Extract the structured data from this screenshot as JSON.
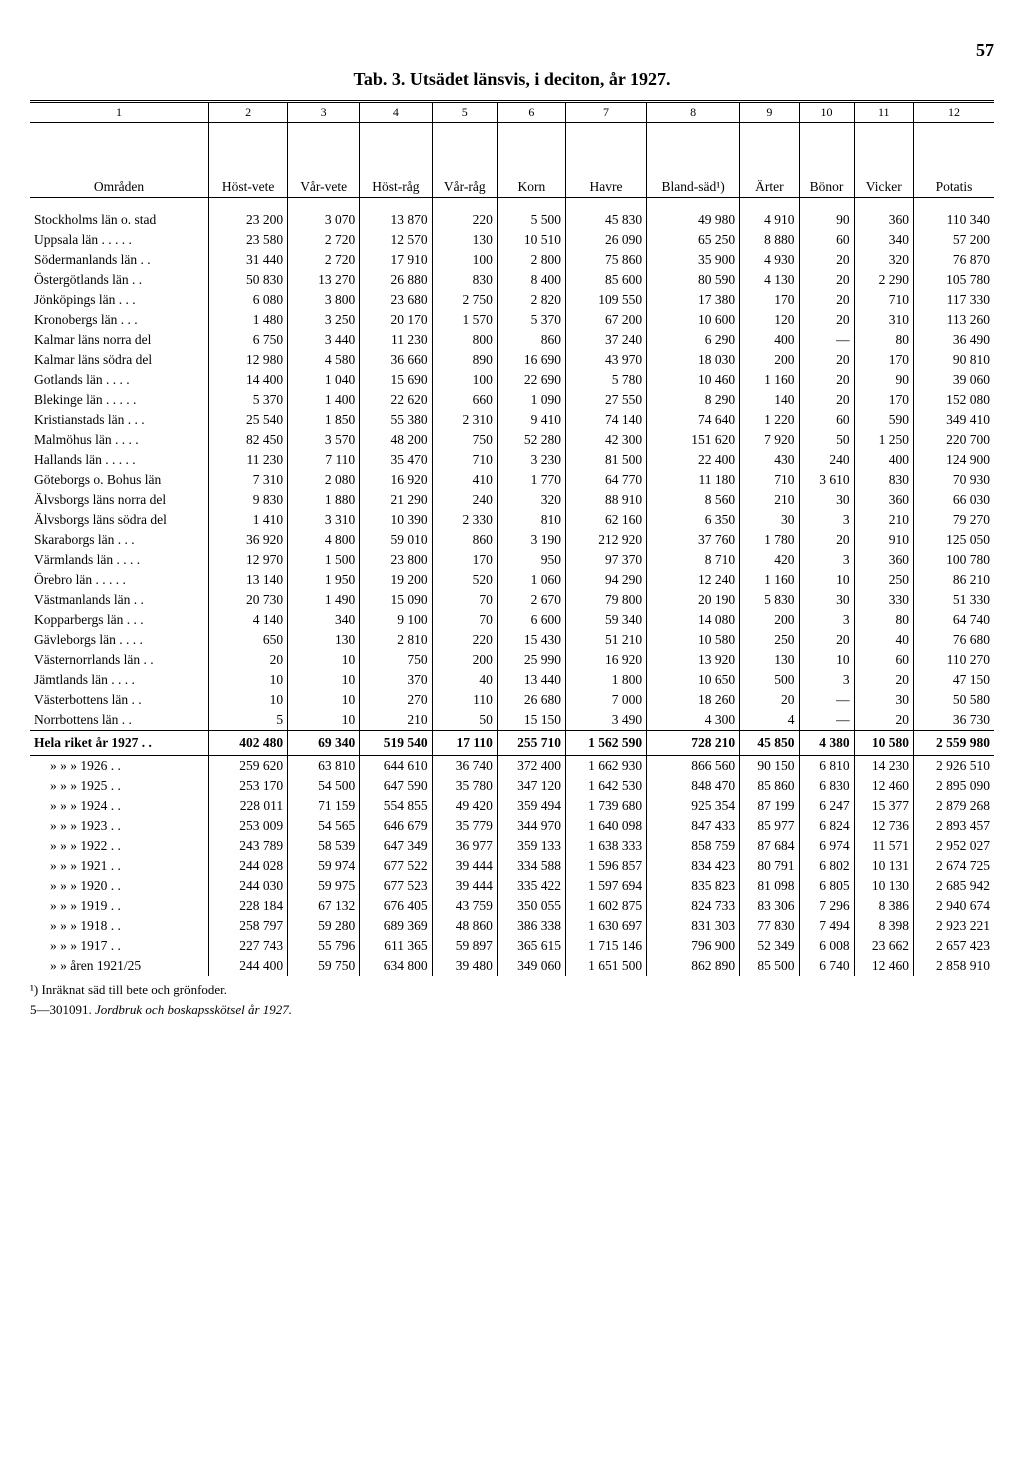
{
  "page_number": "57",
  "title": "Tab. 3.  Utsädet länsvis, i deciton, år 1927.",
  "colnums": [
    "1",
    "2",
    "3",
    "4",
    "5",
    "6",
    "7",
    "8",
    "9",
    "10",
    "11",
    "12"
  ],
  "headers": [
    "Områden",
    "Höst-vete",
    "Vår-vete",
    "Höst-råg",
    "Vår-råg",
    "Korn",
    "Havre",
    "Bland-säd¹)",
    "Ärter",
    "Bönor",
    "Vicker",
    "Potatis"
  ],
  "rows": [
    [
      "Stockholms län o. stad",
      "23 200",
      "3 070",
      "13 870",
      "220",
      "5 500",
      "45 830",
      "49 980",
      "4 910",
      "90",
      "360",
      "110 340"
    ],
    [
      "Uppsala län . . . . .",
      "23 580",
      "2 720",
      "12 570",
      "130",
      "10 510",
      "26 090",
      "65 250",
      "8 880",
      "60",
      "340",
      "57 200"
    ],
    [
      "Södermanlands län . .",
      "31 440",
      "2 720",
      "17 910",
      "100",
      "2 800",
      "75 860",
      "35 900",
      "4 930",
      "20",
      "320",
      "76 870"
    ],
    [
      "Östergötlands län  . .",
      "50 830",
      "13 270",
      "26 880",
      "830",
      "8 400",
      "85 600",
      "80 590",
      "4 130",
      "20",
      "2 290",
      "105 780"
    ],
    [
      "Jönköpings län  . . .",
      "6 080",
      "3 800",
      "23 680",
      "2 750",
      "2 820",
      "109 550",
      "17 380",
      "170",
      "20",
      "710",
      "117 330"
    ],
    [
      "Kronobergs län  . . .",
      "1 480",
      "3 250",
      "20 170",
      "1 570",
      "5 370",
      "67 200",
      "10 600",
      "120",
      "20",
      "310",
      "113 260"
    ],
    [
      "Kalmar läns norra del",
      "6 750",
      "3 440",
      "11 230",
      "800",
      "860",
      "37 240",
      "6 290",
      "400",
      "—",
      "80",
      "36 490"
    ],
    [
      "Kalmar läns södra del",
      "12 980",
      "4 580",
      "36 660",
      "890",
      "16 690",
      "43 970",
      "18 030",
      "200",
      "20",
      "170",
      "90 810"
    ],
    [
      "Gotlands län  . . . .",
      "14 400",
      "1 040",
      "15 690",
      "100",
      "22 690",
      "5 780",
      "10 460",
      "1 160",
      "20",
      "90",
      "39 060"
    ],
    [
      "Blekinge län . . . . .",
      "5 370",
      "1 400",
      "22 620",
      "660",
      "1 090",
      "27 550",
      "8 290",
      "140",
      "20",
      "170",
      "152 080"
    ],
    [
      "Kristianstads län . . .",
      "25 540",
      "1 850",
      "55 380",
      "2 310",
      "9 410",
      "74 140",
      "74 640",
      "1 220",
      "60",
      "590",
      "349 410"
    ],
    [
      "Malmöhus län . . . .",
      "82 450",
      "3 570",
      "48 200",
      "750",
      "52 280",
      "42 300",
      "151 620",
      "7 920",
      "50",
      "1 250",
      "220 700"
    ],
    [
      "Hallands län . . . . .",
      "11 230",
      "7 110",
      "35 470",
      "710",
      "3 230",
      "81 500",
      "22 400",
      "430",
      "240",
      "400",
      "124 900"
    ],
    [
      "Göteborgs o. Bohus län",
      "7 310",
      "2 080",
      "16 920",
      "410",
      "1 770",
      "64 770",
      "11 180",
      "710",
      "3 610",
      "830",
      "70 930"
    ],
    [
      "Älvsborgs läns norra del",
      "9 830",
      "1 880",
      "21 290",
      "240",
      "320",
      "88 910",
      "8 560",
      "210",
      "30",
      "360",
      "66 030"
    ],
    [
      "Älvsborgs läns södra del",
      "1 410",
      "3 310",
      "10 390",
      "2 330",
      "810",
      "62 160",
      "6 350",
      "30",
      "3",
      "210",
      "79 270"
    ],
    [
      "Skaraborgs län  . . .",
      "36 920",
      "4 800",
      "59 010",
      "860",
      "3 190",
      "212 920",
      "37 760",
      "1 780",
      "20",
      "910",
      "125 050"
    ],
    [
      "Värmlands län . . . .",
      "12 970",
      "1 500",
      "23 800",
      "170",
      "950",
      "97 370",
      "8 710",
      "420",
      "3",
      "360",
      "100 780"
    ],
    [
      "Örebro län  . . . . .",
      "13 140",
      "1 950",
      "19 200",
      "520",
      "1 060",
      "94 290",
      "12 240",
      "1 160",
      "10",
      "250",
      "86 210"
    ],
    [
      "Västmanlands län  . .",
      "20 730",
      "1 490",
      "15 090",
      "70",
      "2 670",
      "79 800",
      "20 190",
      "5 830",
      "30",
      "330",
      "51 330"
    ],
    [
      "Kopparbergs län . . .",
      "4 140",
      "340",
      "9 100",
      "70",
      "6 600",
      "59 340",
      "14 080",
      "200",
      "3",
      "80",
      "64 740"
    ],
    [
      "Gävleborgs län . . . .",
      "650",
      "130",
      "2 810",
      "220",
      "15 430",
      "51 210",
      "10 580",
      "250",
      "20",
      "40",
      "76 680"
    ],
    [
      "Västernorrlands län . .",
      "20",
      "10",
      "750",
      "200",
      "25 990",
      "16 920",
      "13 920",
      "130",
      "10",
      "60",
      "110 270"
    ],
    [
      "Jämtlands län . . . .",
      "10",
      "10",
      "370",
      "40",
      "13 440",
      "1 800",
      "10 650",
      "500",
      "3",
      "20",
      "47 150"
    ],
    [
      "Västerbottens län  . .",
      "10",
      "10",
      "270",
      "110",
      "26 680",
      "7 000",
      "18 260",
      "20",
      "—",
      "30",
      "50 580"
    ],
    [
      "Norrbottens län  . .",
      "5",
      "10",
      "210",
      "50",
      "15 150",
      "3 490",
      "4 300",
      "4",
      "—",
      "20",
      "36 730"
    ]
  ],
  "total": [
    "Hela riket år 1927 . .",
    "402 480",
    "69 340",
    "519 540",
    "17 110",
    "255 710",
    "1 562 590",
    "728 210",
    "45 850",
    "4 380",
    "10 580",
    "2 559 980"
  ],
  "history": [
    [
      "»      »      »  1926 . .",
      "259 620",
      "63 810",
      "644 610",
      "36 740",
      "372 400",
      "1 662 930",
      "866 560",
      "90 150",
      "6 810",
      "14 230",
      "2 926 510"
    ],
    [
      "»      »      »  1925 . .",
      "253 170",
      "54 500",
      "647 590",
      "35 780",
      "347 120",
      "1 642 530",
      "848 470",
      "85 860",
      "6 830",
      "12 460",
      "2 895 090"
    ],
    [
      "»      »      »  1924 . .",
      "228 011",
      "71 159",
      "554 855",
      "49 420",
      "359 494",
      "1 739 680",
      "925 354",
      "87 199",
      "6 247",
      "15 377",
      "2 879 268"
    ],
    [
      "»      »      »  1923 . .",
      "253 009",
      "54 565",
      "646 679",
      "35 779",
      "344 970",
      "1 640 098",
      "847 433",
      "85 977",
      "6 824",
      "12 736",
      "2 893 457"
    ],
    [
      "»      »      »  1922 . .",
      "243 789",
      "58 539",
      "647 349",
      "36 977",
      "359 133",
      "1 638 333",
      "858 759",
      "87 684",
      "6 974",
      "11 571",
      "2 952 027"
    ],
    [
      "»      »      »  1921 . .",
      "244 028",
      "59 974",
      "677 522",
      "39 444",
      "334 588",
      "1 596 857",
      "834 423",
      "80 791",
      "6 802",
      "10 131",
      "2 674 725"
    ],
    [
      "»      »      »  1920 . .",
      "244 030",
      "59 975",
      "677 523",
      "39 444",
      "335 422",
      "1 597 694",
      "835 823",
      "81 098",
      "6 805",
      "10 130",
      "2 685 942"
    ],
    [
      "»      »      »  1919 . .",
      "228 184",
      "67 132",
      "676 405",
      "43 759",
      "350 055",
      "1 602 875",
      "824 733",
      "83 306",
      "7 296",
      "8 386",
      "2 940 674"
    ],
    [
      "»      »      »  1918 . .",
      "258 797",
      "59 280",
      "689 369",
      "48 860",
      "386 338",
      "1 630 697",
      "831 303",
      "77 830",
      "7 494",
      "8 398",
      "2 923 221"
    ],
    [
      "»      »      »  1917 . .",
      "227 743",
      "55 796",
      "611 365",
      "59 897",
      "365 615",
      "1 715 146",
      "796 900",
      "52 349",
      "6 008",
      "23 662",
      "2 657 423"
    ],
    [
      "»      »   åren 1921/25",
      "244 400",
      "59 750",
      "634 800",
      "39 480",
      "349 060",
      "1 651 500",
      "862 890",
      "85 500",
      "6 740",
      "12 460",
      "2 858 910"
    ]
  ],
  "footnote": "¹) Inräknat säd till bete och grönfoder.",
  "footer_prefix": "5—301091.  ",
  "footer_italic": "Jordbruk och boskapsskötsel år 1927."
}
